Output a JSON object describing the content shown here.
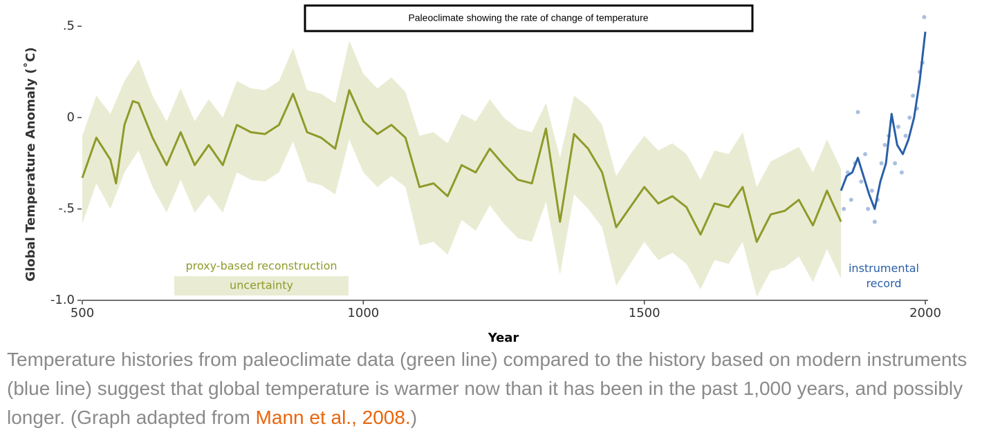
{
  "chart_data": {
    "type": "line",
    "title": "Paleoclimate showing the rate of change of temperature",
    "x_label": "Year",
    "y_label": "Global Temperature Anomaly (˚C)",
    "xlim": [
      500,
      2000
    ],
    "xticks": [
      500,
      1000,
      1500,
      2000
    ],
    "ylim": [
      -1,
      0.5
    ],
    "yticks": [
      {
        "value": -1,
        "label": "-1.0"
      },
      {
        "value": -0.5,
        "label": "-.5"
      },
      0,
      {
        "value": 0.5,
        "label": ".5"
      }
    ],
    "band": {
      "name": "uncertainty",
      "color": "#e9ecd3",
      "x": [
        500,
        525,
        550,
        575,
        600,
        625,
        650,
        675,
        700,
        725,
        750,
        775,
        800,
        825,
        850,
        875,
        900,
        925,
        950,
        975,
        1000,
        1025,
        1050,
        1075,
        1100,
        1125,
        1150,
        1175,
        1200,
        1225,
        1250,
        1275,
        1300,
        1325,
        1350,
        1375,
        1400,
        1425,
        1450,
        1475,
        1500,
        1525,
        1550,
        1575,
        1600,
        1625,
        1650,
        1675,
        1700,
        1725,
        1750,
        1775,
        1800,
        1825,
        1850
      ],
      "upper": [
        -0.1,
        0.12,
        0.02,
        0.2,
        0.32,
        0.12,
        -0.02,
        0.16,
        -0.02,
        0.1,
        0.0,
        0.2,
        0.16,
        0.15,
        0.2,
        0.38,
        0.15,
        0.13,
        0.08,
        0.42,
        0.24,
        0.16,
        0.22,
        0.14,
        -0.1,
        -0.08,
        -0.14,
        0.02,
        -0.02,
        0.1,
        0.0,
        -0.06,
        -0.08,
        0.08,
        -0.22,
        0.12,
        0.06,
        -0.04,
        -0.32,
        -0.2,
        -0.1,
        -0.18,
        -0.14,
        -0.2,
        -0.34,
        -0.18,
        -0.2,
        -0.08,
        -0.38,
        -0.24,
        -0.2,
        -0.16,
        -0.3,
        -0.12,
        -0.28
      ],
      "lower": [
        -0.58,
        -0.36,
        -0.5,
        -0.3,
        -0.18,
        -0.38,
        -0.52,
        -0.34,
        -0.52,
        -0.42,
        -0.52,
        -0.3,
        -0.34,
        -0.35,
        -0.3,
        -0.13,
        -0.35,
        -0.37,
        -0.42,
        -0.12,
        -0.3,
        -0.38,
        -0.32,
        -0.38,
        -0.7,
        -0.68,
        -0.75,
        -0.56,
        -0.62,
        -0.48,
        -0.58,
        -0.66,
        -0.68,
        -0.46,
        -0.86,
        -0.42,
        -0.5,
        -0.6,
        -0.92,
        -0.8,
        -0.68,
        -0.78,
        -0.74,
        -0.8,
        -0.94,
        -0.78,
        -0.8,
        -0.68,
        -0.98,
        -0.84,
        -0.82,
        -0.76,
        -0.9,
        -0.72,
        -0.88
      ]
    },
    "series": [
      {
        "name": "proxy-based reconstruction",
        "color": "#8f9a2a",
        "x": [
          500,
          525,
          550,
          560,
          575,
          590,
          600,
          625,
          650,
          675,
          700,
          725,
          750,
          775,
          800,
          825,
          850,
          875,
          900,
          925,
          950,
          975,
          1000,
          1025,
          1050,
          1075,
          1100,
          1125,
          1150,
          1175,
          1200,
          1225,
          1250,
          1275,
          1300,
          1325,
          1350,
          1375,
          1400,
          1425,
          1450,
          1475,
          1500,
          1525,
          1550,
          1575,
          1600,
          1625,
          1650,
          1675,
          1700,
          1725,
          1750,
          1775,
          1800,
          1825,
          1850
        ],
        "values": [
          -0.33,
          -0.11,
          -0.23,
          -0.36,
          -0.04,
          0.09,
          0.08,
          -0.11,
          -0.26,
          -0.08,
          -0.26,
          -0.15,
          -0.26,
          -0.04,
          -0.08,
          -0.09,
          -0.04,
          0.13,
          -0.08,
          -0.11,
          -0.17,
          0.15,
          -0.02,
          -0.09,
          -0.04,
          -0.11,
          -0.38,
          -0.36,
          -0.43,
          -0.26,
          -0.3,
          -0.17,
          -0.26,
          -0.34,
          -0.36,
          -0.06,
          -0.57,
          -0.09,
          -0.17,
          -0.3,
          -0.6,
          -0.49,
          -0.38,
          -0.47,
          -0.43,
          -0.49,
          -0.64,
          -0.47,
          -0.49,
          -0.38,
          -0.68,
          -0.53,
          -0.51,
          -0.45,
          -0.59,
          -0.4,
          -0.57
        ]
      },
      {
        "name": "instrumental record",
        "color": "#2a5fa8",
        "x": [
          1850,
          1860,
          1870,
          1880,
          1890,
          1900,
          1910,
          1920,
          1930,
          1940,
          1950,
          1960,
          1970,
          1980,
          1990,
          2000
        ],
        "values": [
          -0.4,
          -0.32,
          -0.3,
          -0.22,
          -0.32,
          -0.42,
          -0.5,
          -0.35,
          -0.25,
          0.02,
          -0.15,
          -0.2,
          -0.12,
          0.0,
          0.2,
          0.47
        ]
      }
    ],
    "points": {
      "color": "#a9bfe0",
      "x": [
        1855,
        1862,
        1868,
        1875,
        1880,
        1886,
        1893,
        1898,
        1905,
        1910,
        1915,
        1922,
        1928,
        1935,
        1940,
        1946,
        1952,
        1958,
        1965,
        1972,
        1978,
        1985,
        1990,
        1995,
        1998
      ],
      "values": [
        -0.5,
        -0.3,
        -0.45,
        -0.25,
        0.03,
        -0.35,
        -0.2,
        -0.5,
        -0.4,
        -0.57,
        -0.45,
        -0.25,
        -0.15,
        -0.1,
        -0.02,
        -0.25,
        -0.05,
        -0.3,
        -0.1,
        0.0,
        0.12,
        0.05,
        0.25,
        0.3,
        0.55
      ]
    }
  },
  "caption": {
    "text": "Temperature histories from paleoclimate data (green line) compared to the history based on modern instruments (blue line) suggest that global temperature is warmer now than it has been in the past 1,000 years, and possibly longer. (Graph adapted from ",
    "link": "Mann et al., 2008.",
    "end": ")"
  }
}
